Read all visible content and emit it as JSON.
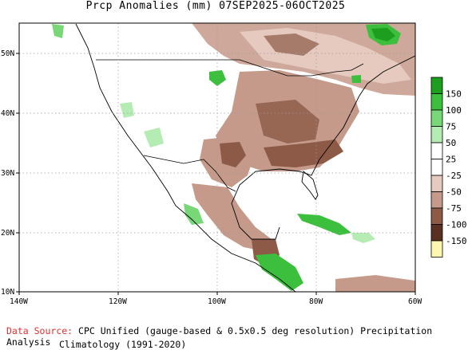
{
  "title": "Prcp Anomalies (mm) 07SEP2025-06OCT2025",
  "lon_ticks": [
    "140W",
    "120W",
    "100W",
    "80W",
    "60W"
  ],
  "lat_ticks": [
    "50N",
    "40N",
    "30N",
    "20N",
    "10N"
  ],
  "legend": {
    "bins": [
      {
        "label": "150",
        "color": "#1e9e1e"
      },
      {
        "label": "100",
        "color": "#3cbf3c"
      },
      {
        "label": "75",
        "color": "#78d878"
      },
      {
        "label": "50",
        "color": "#b4ecb4"
      },
      {
        "label": "25",
        "color": "#ffffff"
      },
      {
        "label": "-25",
        "color": "#ffffff"
      },
      {
        "label": "-50",
        "color": "#e6c9bf"
      },
      {
        "label": "-75",
        "color": "#c59a8a"
      },
      {
        "label": "-100",
        "color": "#8c5a46"
      },
      {
        "label": "-150",
        "color": "#5a3020"
      },
      {
        "label": "",
        "color": "#fff7b0"
      }
    ]
  },
  "source_label": "Data Source:",
  "source_text": "CPC Unified (gauge-based & 0.5x0.5 deg resolution) Precipitation Analysis",
  "climatology": "Climatology (1991-2020)",
  "colors": {
    "ocean": "#ffffff",
    "land": "#ffffff",
    "grid": "#9a9a9a",
    "frame": "#000000"
  }
}
